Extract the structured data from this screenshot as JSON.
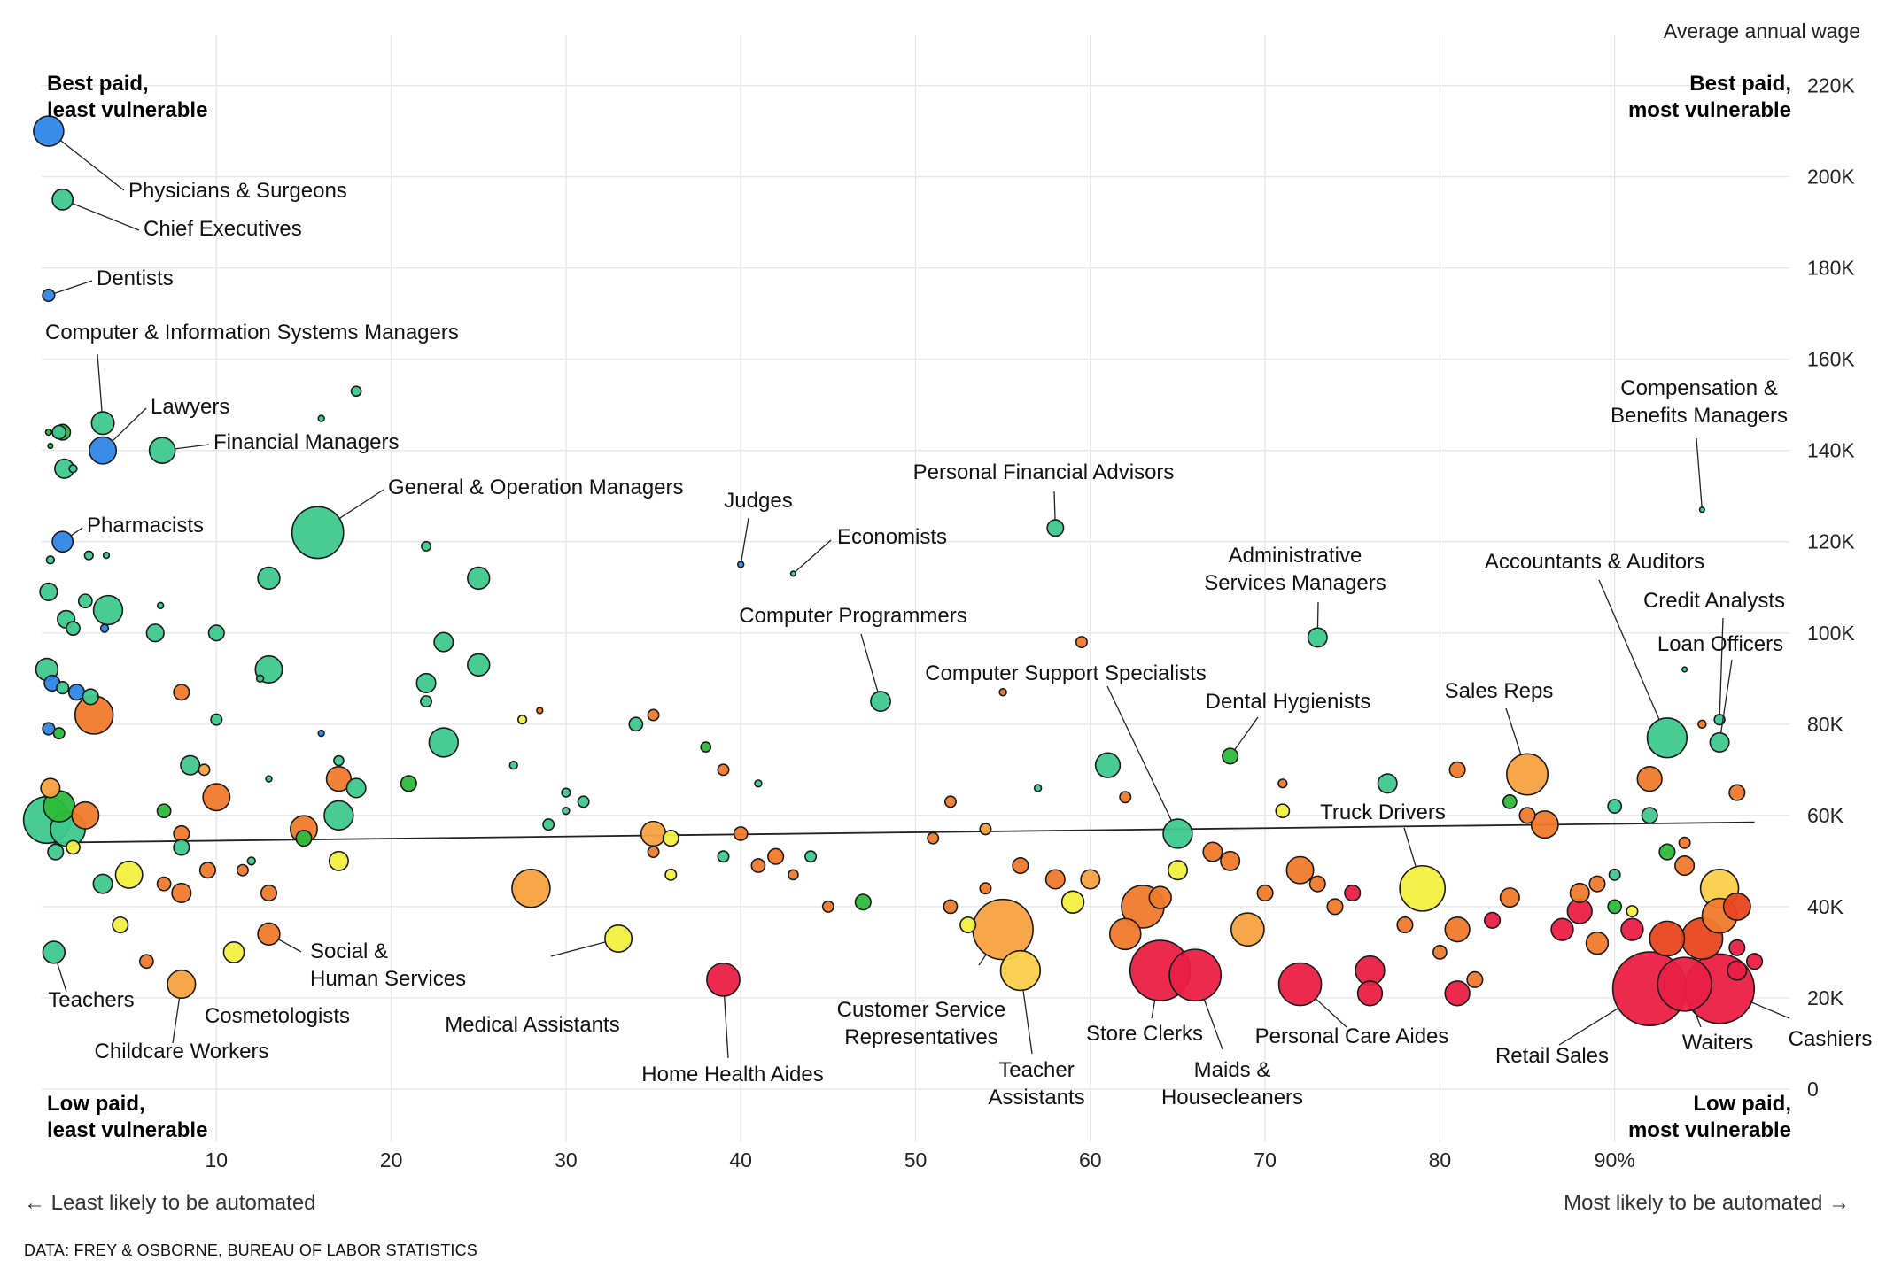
{
  "chart_data": {
    "type": "scatter",
    "title": "",
    "ylabel": "Average annual wage",
    "xlabel": "",
    "xlim": [
      0,
      100
    ],
    "ylim": [
      0,
      230000
    ],
    "x_ticks": [
      10,
      20,
      30,
      40,
      50,
      60,
      70,
      80,
      90
    ],
    "x_tick_labels": [
      "10",
      "20",
      "30",
      "40",
      "50",
      "60",
      "70",
      "80",
      "90%"
    ],
    "y_ticks": [
      0,
      20000,
      40000,
      60000,
      80000,
      100000,
      120000,
      140000,
      160000,
      180000,
      200000,
      220000
    ],
    "y_tick_labels": [
      "0",
      "20K",
      "40K",
      "60K",
      "80K",
      "100K",
      "120K",
      "140K",
      "160K",
      "180K",
      "200K",
      "220K"
    ],
    "grid": true,
    "trend_line": {
      "x": [
        0,
        98
      ],
      "y": [
        54000,
        58500
      ]
    },
    "corner_labels": {
      "top_left": [
        "Best paid,",
        "least vulnerable"
      ],
      "top_right": [
        "Best paid,",
        "most vulnerable"
      ],
      "bottom_left": [
        "Low paid,",
        "least vulnerable"
      ],
      "bottom_right": [
        "Low paid,",
        "most vulnerable"
      ]
    },
    "color_scale": [
      "#2f86e8",
      "#3ec98e",
      "#2dbb3a",
      "#f2ef40",
      "#f7a23f",
      "#f07a2c",
      "#e8461e",
      "#ea1f45"
    ],
    "labeled_occupations": [
      {
        "name": "Physicians & Surgeons",
        "x": 0.4,
        "y": 210000,
        "size": 7.5,
        "color": "#2f86e8"
      },
      {
        "name": "Chief Executives",
        "x": 1.2,
        "y": 195000,
        "size": 3.5,
        "color": "#3ec98e"
      },
      {
        "name": "Dentists",
        "x": 0.4,
        "y": 174000,
        "size": 1.2,
        "color": "#2f86e8"
      },
      {
        "name": "Computer & Information Systems Managers",
        "x": 3.5,
        "y": 146000,
        "size": 4.2,
        "color": "#3ec98e"
      },
      {
        "name": "Lawyers",
        "x": 3.5,
        "y": 140000,
        "size": 6,
        "color": "#2f86e8"
      },
      {
        "name": "Financial Managers",
        "x": 6.9,
        "y": 140000,
        "size": 5.5,
        "color": "#3ec98e"
      },
      {
        "name": "General & Operation Managers",
        "x": 15.8,
        "y": 122000,
        "size": 22,
        "color": "#3ec98e"
      },
      {
        "name": "Pharmacists",
        "x": 1.2,
        "y": 120000,
        "size": 3.5,
        "color": "#2f86e8"
      },
      {
        "name": "Judges",
        "x": 40,
        "y": 115000,
        "size": 0.3,
        "color": "#2f86e8"
      },
      {
        "name": "Economists",
        "x": 43,
        "y": 113000,
        "size": 0.2,
        "color": "#3ec98e"
      },
      {
        "name": "Personal Financial Advisors",
        "x": 58,
        "y": 123000,
        "size": 2.2,
        "color": "#3ec98e"
      },
      {
        "name": "Computer Programmers",
        "x": 48,
        "y": 85000,
        "size": 3.2,
        "color": "#3ec98e"
      },
      {
        "name": "Administrative Services Managers",
        "x": 73,
        "y": 99000,
        "size": 3,
        "color": "#3ec98e"
      },
      {
        "name": "Accountants & Auditors",
        "x": 93,
        "y": 77000,
        "size": 13,
        "color": "#3ec98e"
      },
      {
        "name": "Credit Analysts",
        "x": 96,
        "y": 81000,
        "size": 0.9,
        "color": "#3ec98e"
      },
      {
        "name": "Loan Officers",
        "x": 96,
        "y": 76000,
        "size": 3,
        "color": "#3ec98e"
      },
      {
        "name": "Compensation & Benefits Managers",
        "x": 95,
        "y": 127000,
        "size": 0.2,
        "color": "#3ec98e"
      },
      {
        "name": "Computer Support Specialists",
        "x": 65,
        "y": 56000,
        "size": 7,
        "color": "#3ec98e"
      },
      {
        "name": "Dental Hygienists",
        "x": 68,
        "y": 73000,
        "size": 2,
        "color": "#2dbb3a"
      },
      {
        "name": "Sales Reps",
        "x": 85,
        "y": 69000,
        "size": 14,
        "color": "#f7a23f"
      },
      {
        "name": "Truck Drivers",
        "x": 79,
        "y": 44000,
        "size": 17,
        "color": "#f2ef40"
      },
      {
        "name": "Teachers",
        "x": 0.7,
        "y": 30000,
        "size": 4,
        "color": "#3ec98e"
      },
      {
        "name": "Childcare Workers",
        "x": 8,
        "y": 23000,
        "size": 6.5,
        "color": "#f7a23f"
      },
      {
        "name": "Cosmetologists",
        "x": 11,
        "y": 30000,
        "size": 3.5,
        "color": "#f2ef40"
      },
      {
        "name": "Social & Human Services",
        "x": 13,
        "y": 34000,
        "size": 4,
        "color": "#f07a2c"
      },
      {
        "name": "Medical Assistants",
        "x": 33,
        "y": 33000,
        "size": 6,
        "color": "#f2ef40"
      },
      {
        "name": "Home Health Aides",
        "x": 39,
        "y": 24000,
        "size": 9,
        "color": "#ea1f45"
      },
      {
        "name": "Customer Service Representatives",
        "x": 55,
        "y": 35000,
        "size": 30,
        "color": "#f7a23f"
      },
      {
        "name": "Teacher Assistants",
        "x": 56,
        "y": 26000,
        "size": 13,
        "color": "#fbcf4a"
      },
      {
        "name": "Store Clerks",
        "x": 64,
        "y": 26000,
        "size": 30,
        "color": "#ea1f45"
      },
      {
        "name": "Maids & Housecleaners",
        "x": 66,
        "y": 25000,
        "size": 22,
        "color": "#ea1f45"
      },
      {
        "name": "Personal Care Aides",
        "x": 72,
        "y": 23000,
        "size": 15,
        "color": "#ea1f45"
      },
      {
        "name": "Retail Sales",
        "x": 92,
        "y": 22000,
        "size": 45,
        "color": "#ea1f45"
      },
      {
        "name": "Waiters",
        "x": 94,
        "y": 23000,
        "size": 24,
        "color": "#ea1f45"
      },
      {
        "name": "Cashiers",
        "x": 96,
        "y": 22000,
        "size": 40,
        "color": "#ea1f45"
      }
    ],
    "other_points": [
      [
        0.3,
        59000,
        18,
        "#3ec98e"
      ],
      [
        1,
        62000,
        8,
        "#2dbb3a"
      ],
      [
        0.5,
        66000,
        3,
        "#f7a23f"
      ],
      [
        1.5,
        57000,
        10,
        "#3ec98e"
      ],
      [
        2.5,
        60000,
        6,
        "#f07a2c"
      ],
      [
        0.8,
        52000,
        2,
        "#3ec98e"
      ],
      [
        1.8,
        53000,
        1.5,
        "#f2ef40"
      ],
      [
        0.3,
        92000,
        4,
        "#3ec98e"
      ],
      [
        0.6,
        89000,
        2,
        "#2f86e8"
      ],
      [
        1.2,
        88000,
        1.2,
        "#3ec98e"
      ],
      [
        2,
        87000,
        2,
        "#2f86e8"
      ],
      [
        3,
        82000,
        12,
        "#f07a2c"
      ],
      [
        2.8,
        86000,
        2,
        "#3ec98e"
      ],
      [
        0.4,
        79000,
        1.2,
        "#2f86e8"
      ],
      [
        1,
        78000,
        1,
        "#2dbb3a"
      ],
      [
        0.4,
        109000,
        2.5,
        "#3ec98e"
      ],
      [
        1.4,
        103000,
        2.5,
        "#3ec98e"
      ],
      [
        1.8,
        101000,
        1.5,
        "#3ec98e"
      ],
      [
        2.5,
        107000,
        1.5,
        "#3ec98e"
      ],
      [
        3.8,
        105000,
        7,
        "#3ec98e"
      ],
      [
        3.6,
        101000,
        0.5,
        "#2f86e8"
      ],
      [
        0.5,
        116000,
        0.5,
        "#3ec98e"
      ],
      [
        2.7,
        117000,
        0.6,
        "#3ec98e"
      ],
      [
        3.7,
        117000,
        0.3,
        "#3ec98e"
      ],
      [
        1,
        144000,
        1.5,
        "#3ec98e"
      ],
      [
        1.2,
        144000,
        2,
        "#2dbb3a"
      ],
      [
        0.4,
        144000,
        0.3,
        "#2dbb3a"
      ],
      [
        1.3,
        136000,
        3,
        "#3ec98e"
      ],
      [
        1.8,
        136000,
        0.5,
        "#3ec98e"
      ],
      [
        0.5,
        141000,
        0.2,
        "#2dbb3a"
      ],
      [
        18,
        153000,
        0.8,
        "#3ec98e"
      ],
      [
        16,
        147000,
        0.3,
        "#3ec98e"
      ],
      [
        13,
        112000,
        4,
        "#3ec98e"
      ],
      [
        13,
        92000,
        6,
        "#3ec98e"
      ],
      [
        10,
        100000,
        2,
        "#3ec98e"
      ],
      [
        12.5,
        90000,
        0.4,
        "#3ec98e"
      ],
      [
        6.8,
        106000,
        0.3,
        "#3ec98e"
      ],
      [
        6.5,
        100000,
        2.5,
        "#3ec98e"
      ],
      [
        10,
        81000,
        1,
        "#3ec98e"
      ],
      [
        9.3,
        70000,
        1,
        "#f7a23f"
      ],
      [
        8,
        87000,
        2,
        "#f07a2c"
      ],
      [
        8.5,
        71000,
        3,
        "#3ec98e"
      ],
      [
        10,
        64000,
        6,
        "#f07a2c"
      ],
      [
        13,
        68000,
        0.3,
        "#3ec98e"
      ],
      [
        17,
        72000,
        0.8,
        "#3ec98e"
      ],
      [
        16,
        78000,
        0.3,
        "#2f86e8"
      ],
      [
        22,
        119000,
        0.7,
        "#3ec98e"
      ],
      [
        25,
        112000,
        4,
        "#3ec98e"
      ],
      [
        23,
        98000,
        3,
        "#3ec98e"
      ],
      [
        25,
        93000,
        4,
        "#3ec98e"
      ],
      [
        22,
        89000,
        3,
        "#3ec98e"
      ],
      [
        22,
        85000,
        1,
        "#3ec98e"
      ],
      [
        23,
        76000,
        7,
        "#3ec98e"
      ],
      [
        17,
        60000,
        7,
        "#3ec98e"
      ],
      [
        17,
        68000,
        5,
        "#f07a2c"
      ],
      [
        18,
        66000,
        3,
        "#3ec98e"
      ],
      [
        21,
        67000,
        2,
        "#2dbb3a"
      ],
      [
        15,
        57000,
        6,
        "#f07a2c"
      ],
      [
        15,
        55000,
        2,
        "#2dbb3a"
      ],
      [
        17,
        50000,
        3,
        "#f2ef40"
      ],
      [
        12,
        50000,
        0.5,
        "#3ec98e"
      ],
      [
        5,
        47000,
        6,
        "#f2ef40"
      ],
      [
        3.5,
        45000,
        3,
        "#3ec98e"
      ],
      [
        7,
        45000,
        1.5,
        "#f07a2c"
      ],
      [
        8,
        43000,
        3,
        "#f07a2c"
      ],
      [
        4.5,
        36000,
        2,
        "#f2ef40"
      ],
      [
        6,
        28000,
        1.5,
        "#f07a2c"
      ],
      [
        9.5,
        48000,
        2,
        "#f07a2c"
      ],
      [
        13,
        43000,
        2,
        "#f07a2c"
      ],
      [
        11.5,
        48000,
        1,
        "#f07a2c"
      ],
      [
        8,
        56000,
        2,
        "#f07a2c"
      ],
      [
        8,
        53000,
        2,
        "#3ec98e"
      ],
      [
        7,
        61000,
        1.5,
        "#2dbb3a"
      ],
      [
        28,
        44000,
        12,
        "#f7a23f"
      ],
      [
        29,
        58000,
        1,
        "#3ec98e"
      ],
      [
        31,
        63000,
        1,
        "#3ec98e"
      ],
      [
        27,
        71000,
        0.5,
        "#3ec98e"
      ],
      [
        27.5,
        81000,
        0.6,
        "#f2ef40"
      ],
      [
        28.5,
        83000,
        0.3,
        "#f07a2c"
      ],
      [
        34,
        80000,
        1.5,
        "#3ec98e"
      ],
      [
        35,
        82000,
        1,
        "#f07a2c"
      ],
      [
        35,
        56000,
        5,
        "#f7a23f"
      ],
      [
        36,
        55000,
        2,
        "#f2ef40"
      ],
      [
        36,
        47000,
        1,
        "#f2ef40"
      ],
      [
        35,
        52000,
        1,
        "#f07a2c"
      ],
      [
        30,
        65000,
        0.6,
        "#3ec98e"
      ],
      [
        30,
        61000,
        0.4,
        "#3ec98e"
      ],
      [
        39,
        70000,
        1,
        "#f07a2c"
      ],
      [
        41,
        67000,
        0.4,
        "#3ec98e"
      ],
      [
        38,
        75000,
        0.8,
        "#2dbb3a"
      ],
      [
        40,
        56000,
        1.5,
        "#f07a2c"
      ],
      [
        41,
        49000,
        1.5,
        "#f07a2c"
      ],
      [
        42,
        51000,
        2,
        "#f07a2c"
      ],
      [
        39,
        51000,
        1,
        "#3ec98e"
      ],
      [
        44,
        51000,
        1,
        "#3ec98e"
      ],
      [
        43,
        47000,
        0.8,
        "#f07a2c"
      ],
      [
        45,
        40000,
        1,
        "#f07a2c"
      ],
      [
        47,
        41000,
        2,
        "#2dbb3a"
      ],
      [
        52,
        40000,
        1.5,
        "#f07a2c"
      ],
      [
        53,
        36000,
        2,
        "#f2ef40"
      ],
      [
        54,
        44000,
        1,
        "#f07a2c"
      ],
      [
        51,
        55000,
        1,
        "#f07a2c"
      ],
      [
        52,
        63000,
        1,
        "#f07a2c"
      ],
      [
        54,
        57000,
        1,
        "#f7a23f"
      ],
      [
        56,
        49000,
        2,
        "#f07a2c"
      ],
      [
        58,
        46000,
        3,
        "#f07a2c"
      ],
      [
        59,
        41000,
        4,
        "#f2ef40"
      ],
      [
        60,
        46000,
        3,
        "#f7a23f"
      ],
      [
        59.5,
        98000,
        1,
        "#f07a2c"
      ],
      [
        55,
        87000,
        0.4,
        "#f07a2c"
      ],
      [
        57,
        66000,
        0.4,
        "#3ec98e"
      ],
      [
        61,
        71000,
        5,
        "#3ec98e"
      ],
      [
        62,
        64000,
        1,
        "#f07a2c"
      ],
      [
        63,
        40000,
        15,
        "#f07a2c"
      ],
      [
        62,
        34000,
        8,
        "#f07a2c"
      ],
      [
        64,
        42000,
        4,
        "#f07a2c"
      ],
      [
        65,
        48000,
        3,
        "#f2ef40"
      ],
      [
        67,
        52000,
        3,
        "#f07a2c"
      ],
      [
        68,
        50000,
        3,
        "#f07a2c"
      ],
      [
        69,
        35000,
        9,
        "#f7a23f"
      ],
      [
        70,
        43000,
        2,
        "#f07a2c"
      ],
      [
        72,
        48000,
        6,
        "#f07a2c"
      ],
      [
        73,
        45000,
        2,
        "#f07a2c"
      ],
      [
        74,
        40000,
        2,
        "#f07a2c"
      ],
      [
        71,
        61000,
        1.5,
        "#f2ef40"
      ],
      [
        71,
        67000,
        0.6,
        "#f07a2c"
      ],
      [
        77,
        67000,
        3,
        "#3ec98e"
      ],
      [
        81,
        70000,
        2,
        "#f07a2c"
      ],
      [
        75,
        43000,
        2,
        "#ea1f45"
      ],
      [
        76,
        26000,
        7,
        "#ea1f45"
      ],
      [
        76,
        21000,
        5,
        "#ea1f45"
      ],
      [
        78,
        36000,
        2,
        "#f07a2c"
      ],
      [
        80,
        30000,
        1.5,
        "#f07a2c"
      ],
      [
        81,
        35000,
        5,
        "#f07a2c"
      ],
      [
        81,
        21000,
        5,
        "#ea1f45"
      ],
      [
        82,
        24000,
        2,
        "#f07a2c"
      ],
      [
        83,
        37000,
        2,
        "#ea1f45"
      ],
      [
        84,
        42000,
        3,
        "#f07a2c"
      ],
      [
        84,
        63000,
        1.5,
        "#2dbb3a"
      ],
      [
        86,
        58000,
        6,
        "#f07a2c"
      ],
      [
        85,
        60000,
        2,
        "#f07a2c"
      ],
      [
        87,
        35000,
        4,
        "#ea1f45"
      ],
      [
        88,
        39000,
        5,
        "#ea1f45"
      ],
      [
        88,
        43000,
        3,
        "#f07a2c"
      ],
      [
        89,
        45000,
        2,
        "#f07a2c"
      ],
      [
        89,
        32000,
        4,
        "#f07a2c"
      ],
      [
        90,
        47000,
        1,
        "#3ec98e"
      ],
      [
        90,
        40000,
        1.5,
        "#2dbb3a"
      ],
      [
        90,
        62000,
        1.5,
        "#3ec98e"
      ],
      [
        91,
        39000,
        1,
        "#f2ef40"
      ],
      [
        92,
        60000,
        2,
        "#3ec98e"
      ],
      [
        92,
        68000,
        5,
        "#f07a2c"
      ],
      [
        93,
        52000,
        2,
        "#2dbb3a"
      ],
      [
        94,
        49000,
        3,
        "#f07a2c"
      ],
      [
        94,
        54000,
        1,
        "#f07a2c"
      ],
      [
        96,
        44000,
        12,
        "#fbcf4a"
      ],
      [
        96,
        38000,
        10,
        "#f07a2c"
      ],
      [
        97,
        40000,
        6,
        "#e8461e"
      ],
      [
        95,
        33000,
        14,
        "#e8461e"
      ],
      [
        93,
        33000,
        10,
        "#e8461e"
      ],
      [
        91,
        35000,
        4,
        "#ea1f45"
      ],
      [
        97,
        65000,
        2,
        "#f07a2c"
      ],
      [
        95,
        80000,
        0.5,
        "#f07a2c"
      ],
      [
        94,
        92000,
        0.2,
        "#3ec98e"
      ],
      [
        97,
        26000,
        3,
        "#ea1f45"
      ],
      [
        98,
        28000,
        2,
        "#ea1f45"
      ],
      [
        97,
        31000,
        2,
        "#ea1f45"
      ]
    ]
  },
  "source_text": "DATA: FREY & OSBORNE, BUREAU OF LABOR STATISTICS",
  "axis_note_left": "← Least likely to be automated",
  "axis_note_right": "Most likely to be automated →"
}
